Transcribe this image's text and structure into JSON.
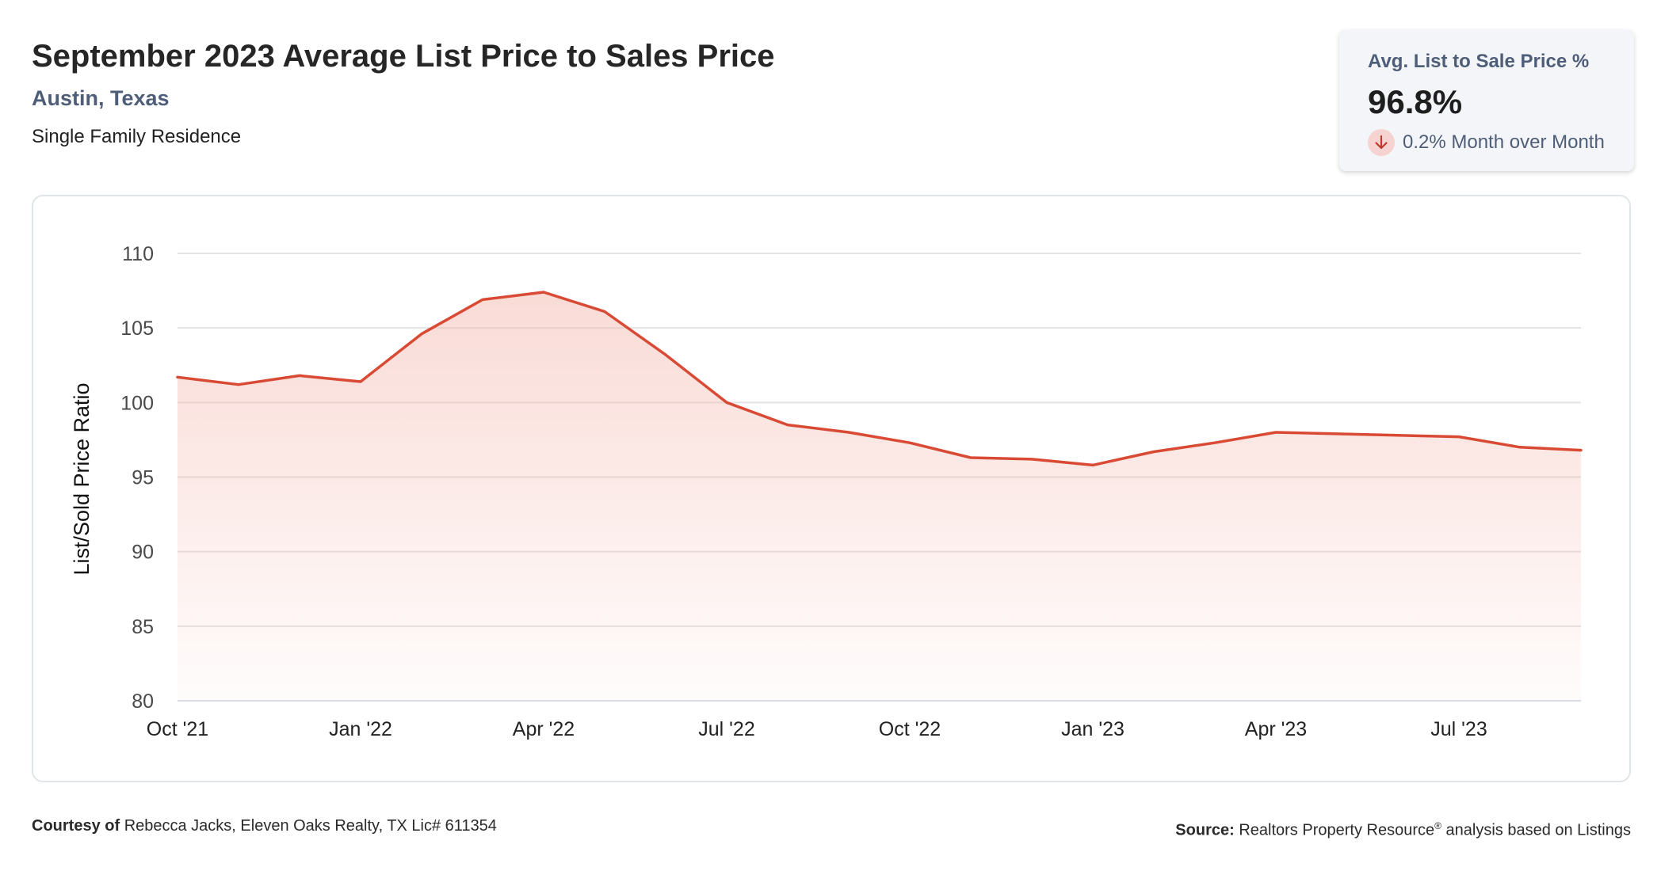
{
  "header": {
    "title": "September 2023 Average List Price to Sales Price",
    "location": "Austin, Texas",
    "property_type": "Single Family Residence"
  },
  "stat_card": {
    "label": "Avg. List to Sale Price %",
    "value": "96.8%",
    "change_text": "0.2% Month over Month",
    "change_direction": "down",
    "icon": "arrow-down-icon"
  },
  "footer": {
    "courtesy_label": "Courtesy of",
    "courtesy_text": "Rebecca Jacks, Eleven Oaks Realty, TX Lic# 611354",
    "source_label": "Source:",
    "source_name": "Realtors Property Resource",
    "source_mark": "®",
    "source_text": "analysis based on Listings"
  },
  "colors": {
    "accent_line": "#d94a35",
    "area_fill": "#f4b7ad",
    "subtitle": "#4e5d78",
    "stat_label": "#4e5d78",
    "stat_change": "#4e5d78",
    "grid": "#e3e3e3",
    "axis": "#d8dde4",
    "down_icon": "#c0392b",
    "tick_text": "#4a4a4a"
  },
  "chart_data": {
    "type": "area",
    "title": "",
    "xlabel": "",
    "ylabel": "List/Sold Price Ratio",
    "ylim": [
      80,
      110
    ],
    "yticks": [
      80,
      85,
      90,
      95,
      100,
      105,
      110
    ],
    "grid": true,
    "legend": "none",
    "x": [
      "2021-10",
      "2021-11",
      "2021-12",
      "2022-01",
      "2022-02",
      "2022-03",
      "2022-04",
      "2022-05",
      "2022-06",
      "2022-07",
      "2022-08",
      "2022-09",
      "2022-10",
      "2022-11",
      "2022-12",
      "2023-01",
      "2023-02",
      "2023-03",
      "2023-04",
      "2023-05",
      "2023-06",
      "2023-07",
      "2023-08",
      "2023-09"
    ],
    "xtick_labels": [
      {
        "x": "2021-10",
        "label": "Oct '21"
      },
      {
        "x": "2022-01",
        "label": "Jan '22"
      },
      {
        "x": "2022-04",
        "label": "Apr '22"
      },
      {
        "x": "2022-07",
        "label": "Jul '22"
      },
      {
        "x": "2022-10",
        "label": "Oct '22"
      },
      {
        "x": "2023-01",
        "label": "Jan '23"
      },
      {
        "x": "2023-04",
        "label": "Apr '23"
      },
      {
        "x": "2023-07",
        "label": "Jul '23"
      }
    ],
    "series": [
      {
        "values": [
          101.7,
          101.2,
          101.8,
          101.4,
          104.6,
          106.9,
          107.4,
          106.1,
          103.2,
          100.0,
          98.5,
          98.0,
          97.3,
          96.3,
          96.2,
          95.8,
          96.7,
          97.3,
          98.0,
          97.9,
          97.8,
          97.7,
          97.0,
          96.8
        ]
      }
    ]
  }
}
